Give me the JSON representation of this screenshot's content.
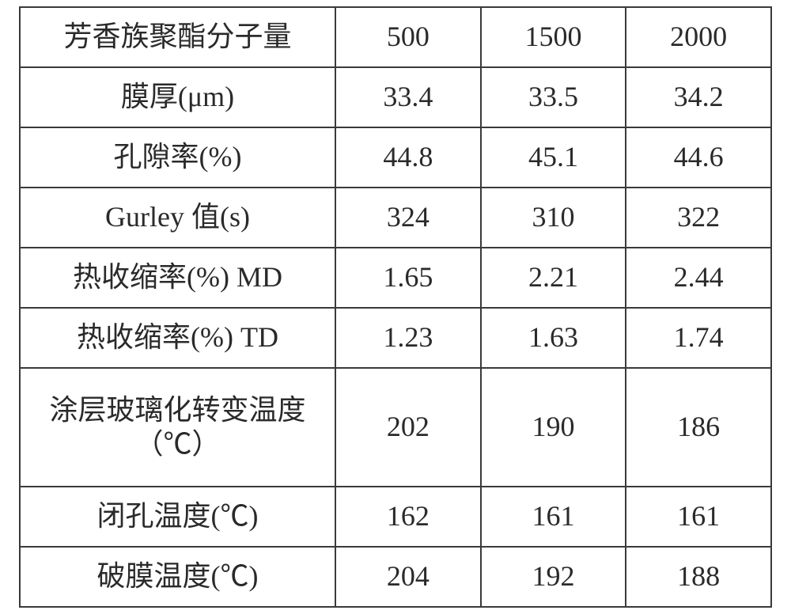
{
  "table": {
    "border_color": "#3a3a3a",
    "background_color": "#ffffff",
    "text_color": "#2a2a2a",
    "font_size_pt": 27,
    "columns": [
      {
        "role": "label",
        "width_pct": 42
      },
      {
        "role": "value",
        "width_pct": 19.33
      },
      {
        "role": "value",
        "width_pct": 19.33
      },
      {
        "role": "value",
        "width_pct": 19.33
      }
    ],
    "rows": [
      {
        "label_lines": [
          "芳香族聚酯分子量"
        ],
        "values": [
          "500",
          "1500",
          "2000"
        ],
        "tall": false
      },
      {
        "label_lines": [
          "膜厚(μm)"
        ],
        "values": [
          "33.4",
          "33.5",
          "34.2"
        ],
        "tall": false
      },
      {
        "label_lines": [
          "孔隙率(%)"
        ],
        "values": [
          "44.8",
          "45.1",
          "44.6"
        ],
        "tall": false
      },
      {
        "label_lines": [
          "Gurley 值(s)"
        ],
        "values": [
          "324",
          "310",
          "322"
        ],
        "tall": false
      },
      {
        "label_lines": [
          "热收缩率(%) MD"
        ],
        "values": [
          "1.65",
          "2.21",
          "2.44"
        ],
        "tall": false
      },
      {
        "label_lines": [
          "热收缩率(%) TD"
        ],
        "values": [
          "1.23",
          "1.63",
          "1.74"
        ],
        "tall": false
      },
      {
        "label_lines": [
          "涂层玻璃化转变温度",
          "（℃）"
        ],
        "values": [
          "202",
          "190",
          "186"
        ],
        "tall": true
      },
      {
        "label_lines": [
          "闭孔温度(℃)"
        ],
        "values": [
          "162",
          "161",
          "161"
        ],
        "tall": false
      },
      {
        "label_lines": [
          "破膜温度(℃)"
        ],
        "values": [
          "204",
          "192",
          "188"
        ],
        "tall": false
      }
    ]
  }
}
